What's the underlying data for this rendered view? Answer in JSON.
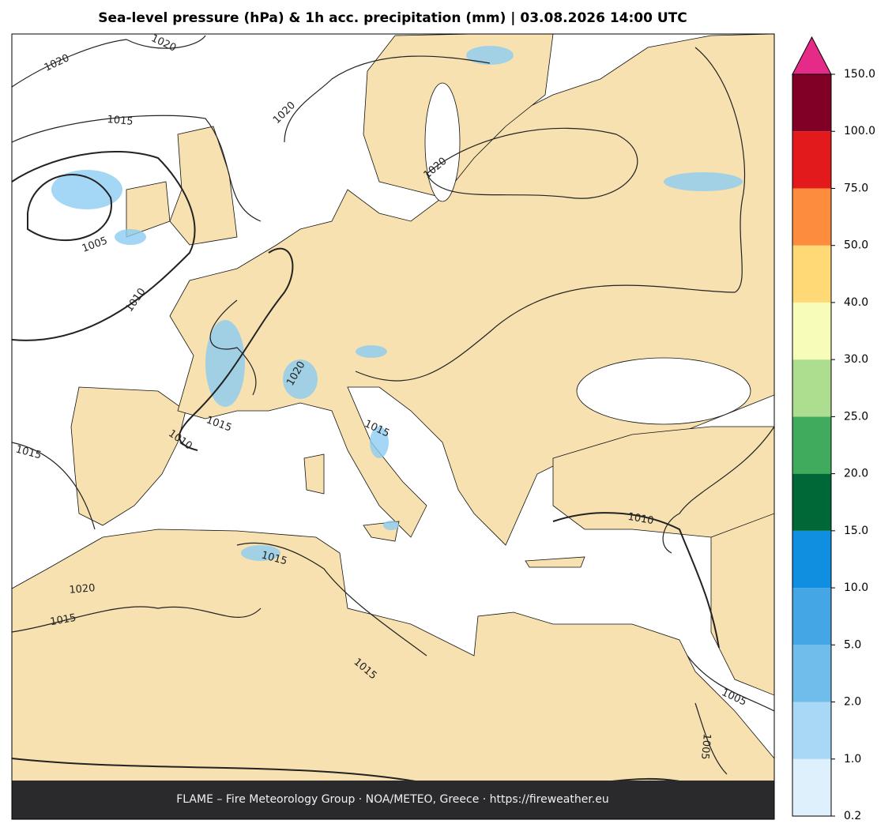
{
  "header": {
    "title": "Sea-level pressure (hPa) & 1h acc. precipitation (mm)  |  03.08.2026 14:00 UTC"
  },
  "map": {
    "contour_labels": [
      "1020",
      "1020",
      "1020",
      "1015",
      "1005",
      "1010",
      "1020",
      "1020",
      "1015",
      "1010",
      "1015",
      "1015",
      "1010",
      "1015",
      "1020",
      "1015",
      "1015",
      "1005",
      "1005"
    ]
  },
  "colorbar": {
    "ticks": [
      {
        "value": 0.2,
        "label": "0.2"
      },
      {
        "value": 1,
        "label": "1.0"
      },
      {
        "value": 2,
        "label": "2.0"
      },
      {
        "value": 5,
        "label": "5.0"
      },
      {
        "value": 10,
        "label": "10.0"
      },
      {
        "value": 15,
        "label": "15.0"
      },
      {
        "value": 20,
        "label": "20.0"
      },
      {
        "value": 25,
        "label": "25.0"
      },
      {
        "value": 30,
        "label": "30.0"
      },
      {
        "value": 40,
        "label": "40.0"
      },
      {
        "value": 50,
        "label": "50.0"
      },
      {
        "value": 75,
        "label": "75.0"
      },
      {
        "value": 100,
        "label": "100.0"
      },
      {
        "value": 150,
        "label": "150.0"
      }
    ],
    "colors": [
      "#ddf0fc",
      "#a8d8f6",
      "#70bdec",
      "#45a6e6",
      "#108fe0",
      "#006837",
      "#41ab5d",
      "#addd8e",
      "#f7fcb9",
      "#fed976",
      "#fd8d3c",
      "#e31a1c",
      "#800026"
    ],
    "extend_color": "#e52a87"
  },
  "footer": {
    "text": "FLAME – Fire Meteorology Group · NOA/METEO, Greece · https://fireweather.eu"
  }
}
